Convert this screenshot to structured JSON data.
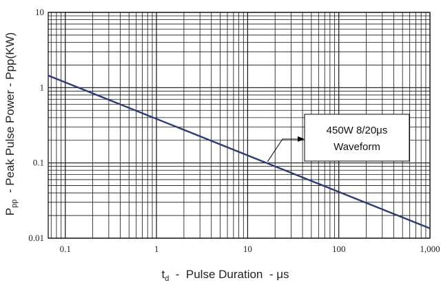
{
  "chart_data": {
    "type": "line",
    "x_scale": "log",
    "y_scale": "log",
    "xlim": [
      0.065,
      1000
    ],
    "ylim": [
      0.01,
      10
    ],
    "x_ticks": [
      {
        "value": 0.1,
        "label": "0.1"
      },
      {
        "value": 1,
        "label": "1"
      },
      {
        "value": 10,
        "label": "10"
      },
      {
        "value": 100,
        "label": "100"
      },
      {
        "value": 1000,
        "label": "1,000"
      }
    ],
    "y_ticks": [
      {
        "value": 0.01,
        "label": "0.01"
      },
      {
        "value": 0.1,
        "label": "0.1"
      },
      {
        "value": 1,
        "label": "1"
      },
      {
        "value": 10,
        "label": "10"
      }
    ],
    "xlabel_main": "t",
    "xlabel_sub": "d",
    "xlabel_rest": "  -  Pulse Duration  - μs",
    "ylabel_main": "P",
    "ylabel_sub": "pp",
    "ylabel_rest": "  - Peak Pulse Power - Ppp(KW)",
    "grid": true,
    "series": [
      {
        "x": [
          0.065,
          1000
        ],
        "y": [
          1.45,
          0.0135
        ],
        "color": "#2b3a78"
      }
    ],
    "annotation": {
      "line1": "450W  8/20μs",
      "line2": "Waveform",
      "arrow_to": {
        "x": 16,
        "y": 0.1
      }
    }
  }
}
